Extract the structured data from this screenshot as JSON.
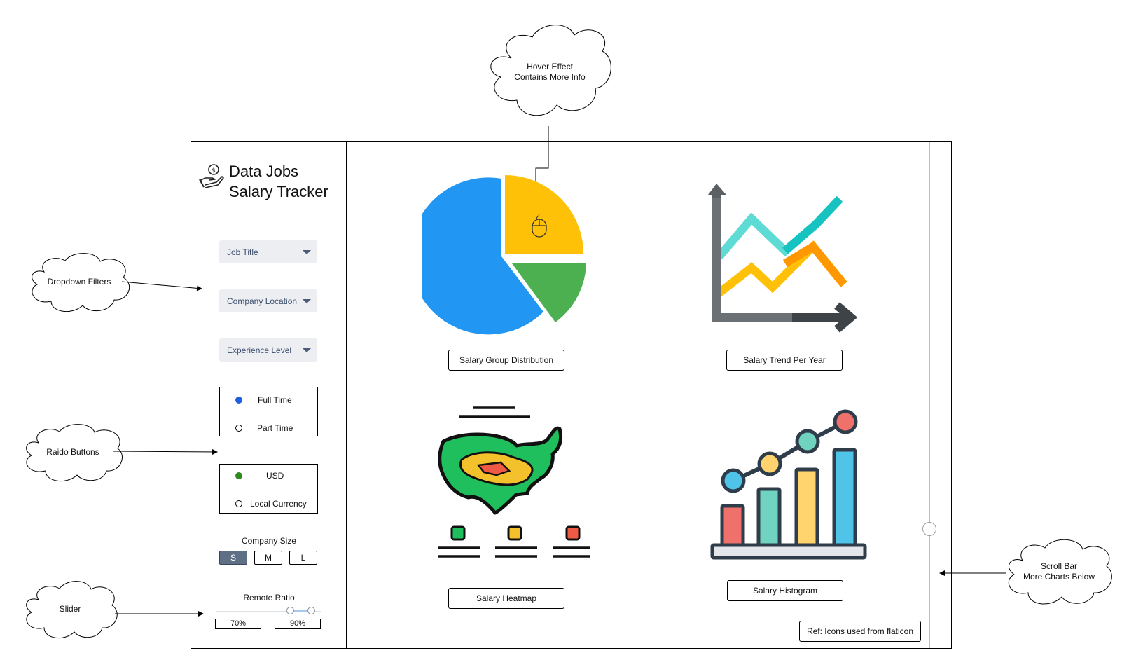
{
  "app": {
    "title_line1": "Data Jobs",
    "title_line2": "Salary Tracker",
    "logo_icon": "money-hand-icon"
  },
  "filters": {
    "dropdowns": [
      {
        "label": "Job Title"
      },
      {
        "label": "Company Location"
      },
      {
        "label": "Experience Level"
      }
    ],
    "employment_type": {
      "options": [
        "Full Time",
        "Part Time"
      ],
      "selected": "Full Time",
      "selected_color": "#1f5fe0"
    },
    "currency": {
      "options": [
        "USD",
        "Local Currency"
      ],
      "selected": "USD",
      "selected_color": "#2e8b1e"
    },
    "company_size": {
      "label": "Company Size",
      "options": [
        "S",
        "M",
        "L"
      ],
      "selected": "S"
    },
    "remote_ratio": {
      "label": "Remote Ratio",
      "min_label": "70%",
      "max_label": "90%",
      "min_value": 70,
      "max_value": 90
    }
  },
  "charts": {
    "pie": {
      "caption": "Salary Group Distribution",
      "icon": "pie-chart-icon"
    },
    "trend": {
      "caption": "Salary Trend Per Year",
      "icon": "line-chart-icon"
    },
    "heatmap": {
      "caption": "Salary Heatmap",
      "icon": "us-heatmap-icon"
    },
    "histogram": {
      "caption": "Salary Histogram",
      "icon": "bar-chart-icon"
    }
  },
  "reference_note": "Ref: Icons used from flaticon",
  "annotations": {
    "hover": [
      "Hover Effect",
      "Contains More Info"
    ],
    "dropdowns": "Dropdown Filters",
    "radio": "Raido Buttons",
    "slider": "Slider",
    "scroll": [
      "Scroll Bar",
      "More Charts Below"
    ]
  },
  "colors": {
    "pie_blue": "#2196f3",
    "pie_yellow": "#ffc107",
    "pie_green": "#4caf50"
  }
}
